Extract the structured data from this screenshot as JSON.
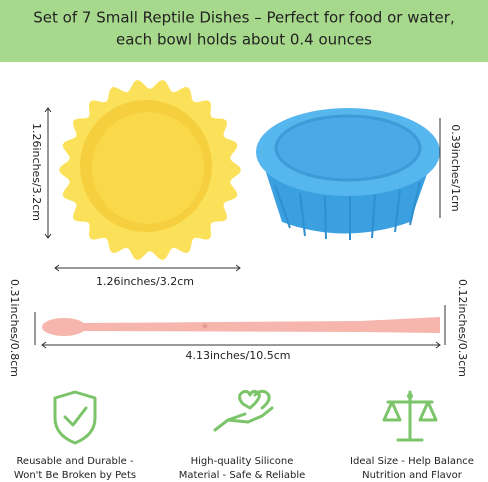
{
  "header": {
    "title_lines": [
      "Set of 7 Small Reptile Dishes – Perfect for food or water,",
      "each bowl holds about 0.4 ounces"
    ]
  },
  "dimensions": {
    "yellow_height": "1.26inches/3.2cm",
    "yellow_width": "1.26inches/3.2cm",
    "blue_height": "0.39inches/1cm",
    "spoon_left": "0.31inches/0.8cm",
    "spoon_right": "0.12inches/0.3cm",
    "spoon_length": "4.13inches/10.5cm"
  },
  "features": [
    {
      "lines": [
        "Reusable and Durable -",
        "Won't Be Broken by Pets"
      ]
    },
    {
      "lines": [
        "High-quality Silicone",
        "Material - Safe & Reliable"
      ]
    },
    {
      "lines": [
        "Ideal Size - Help Balance",
        "Nutrition and Flavor"
      ]
    }
  ]
}
